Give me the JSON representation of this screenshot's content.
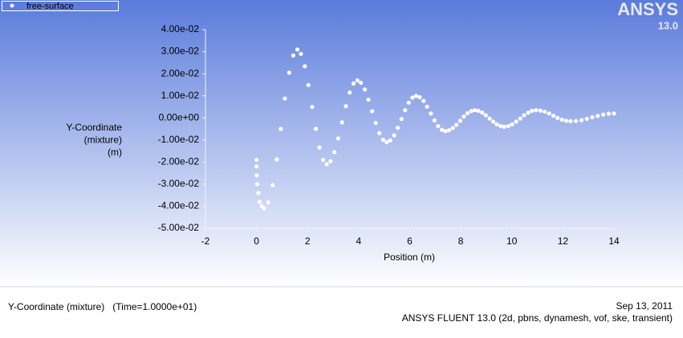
{
  "logo": {
    "brand": "ANSYS",
    "version": "13.0"
  },
  "footer": {
    "left": "Y-Coordinate (mixture)   (Time=1.0000e+01)",
    "date": "Sep 13, 2011",
    "version": "ANSYS FLUENT 13.0 (2d, pbns, dynamesh, vof, ske, transient)"
  },
  "chart_data": {
    "type": "scatter",
    "x_label": "Position (m)",
    "y_label": [
      "Y-Coordinate",
      "(mixture)",
      "(m)"
    ],
    "xlim": [
      -2,
      14
    ],
    "ylim": [
      -0.05,
      0.04
    ],
    "xticks": [
      -2,
      0,
      2,
      4,
      6,
      8,
      10,
      12,
      14
    ],
    "yticks": [
      {
        "value": 0.04,
        "label": "4.00e-02"
      },
      {
        "value": 0.03,
        "label": "3.00e-02"
      },
      {
        "value": 0.02,
        "label": "2.00e-02"
      },
      {
        "value": 0.01,
        "label": "1.00e-02"
      },
      {
        "value": 0,
        "label": "0.00e+00"
      },
      {
        "value": -0.01,
        "label": "-1.00e-02"
      },
      {
        "value": -0.02,
        "label": "-2.00e-02"
      },
      {
        "value": -0.03,
        "label": "-3.00e-02"
      },
      {
        "value": -0.04,
        "label": "-4.00e-02"
      },
      {
        "value": -0.05,
        "label": "-5.00e-02"
      }
    ],
    "legend": "top-left",
    "series": [
      {
        "name": "free-surface",
        "color": "#ffffff",
        "x": [
          0,
          0,
          0.01,
          0.03,
          0.07,
          0.12,
          0.2,
          0.3,
          0.46,
          0.63,
          0.79,
          0.95,
          1.11,
          1.28,
          1.44,
          1.6,
          1.74,
          1.89,
          2.03,
          2.18,
          2.32,
          2.46,
          2.61,
          2.75,
          2.9,
          3.05,
          3.2,
          3.35,
          3.5,
          3.65,
          3.8,
          3.95,
          4.09,
          4.24,
          4.38,
          4.53,
          4.67,
          4.81,
          4.96,
          5.1,
          5.24,
          5.39,
          5.53,
          5.68,
          5.82,
          5.96,
          6.11,
          6.25,
          6.39,
          6.54,
          6.68,
          6.83,
          6.97,
          7.11,
          7.26,
          7.4,
          7.54,
          7.69,
          7.83,
          7.98,
          8.12,
          8.26,
          8.41,
          8.55,
          8.69,
          8.84,
          8.98,
          9.13,
          9.27,
          9.41,
          9.56,
          9.7,
          9.86,
          10.01,
          10.17,
          10.33,
          10.48,
          10.64,
          10.79,
          10.95,
          11.12,
          11.29,
          11.46,
          11.63,
          11.79,
          11.96,
          12.13,
          12.3,
          12.51,
          12.73,
          12.94,
          13.15,
          13.36,
          13.58,
          13.79,
          14
        ],
        "values": [
          -0.019,
          -0.022,
          -0.026,
          -0.03,
          -0.034,
          -0.038,
          -0.04,
          -0.041,
          -0.0383,
          -0.0305,
          -0.0188,
          -0.005,
          0.0088,
          0.0205,
          0.0283,
          0.031,
          0.029,
          0.0234,
          0.0149,
          0.005,
          -0.0049,
          -0.0134,
          -0.019,
          -0.021,
          -0.0196,
          -0.0155,
          -0.0093,
          -0.002,
          0.0053,
          0.0115,
          0.0156,
          0.017,
          0.0159,
          0.0129,
          0.0083,
          0.003,
          -0.0023,
          -0.0069,
          -0.0099,
          -0.011,
          -0.0102,
          -0.0079,
          -0.0045,
          -0.0005,
          0.0035,
          0.0069,
          0.0092,
          0.01,
          0.0094,
          0.0077,
          0.0051,
          0.002,
          -0.0011,
          -0.0037,
          -0.0054,
          -0.006,
          -0.0056,
          -0.0046,
          -0.0031,
          -0.0013,
          0.0006,
          0.0021,
          0.0031,
          0.0035,
          0.0032,
          0.0024,
          0.0012,
          -0.0003,
          -0.0017,
          -0.0029,
          -0.0037,
          -0.004,
          -0.0037,
          -0.0029,
          -0.0017,
          -0.0003,
          0.0012,
          0.0024,
          0.0032,
          0.0035,
          0.0033,
          0.0028,
          0.002,
          0.001,
          0,
          -0.0008,
          -0.0013,
          -0.0015,
          -0.0014,
          -0.001,
          -0.0004,
          0.0003,
          0.0009,
          0.0015,
          0.0019,
          0.002
        ]
      }
    ]
  }
}
